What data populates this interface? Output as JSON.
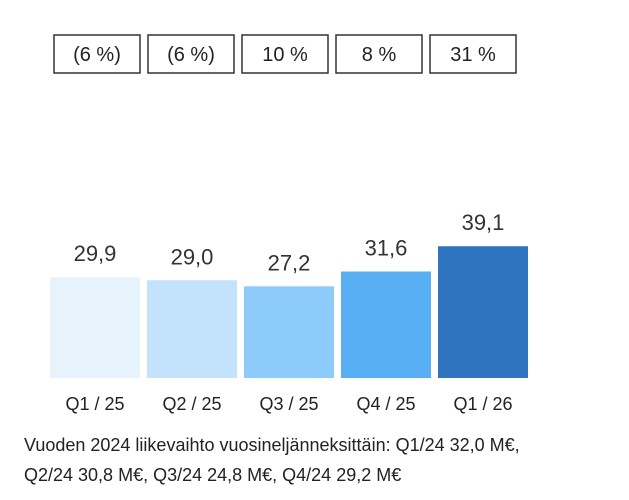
{
  "chart_data": {
    "type": "bar",
    "categories": [
      "Q1 / 25",
      "Q2 / 25",
      "Q3 / 25",
      "Q4 / 25",
      "Q1 / 26"
    ],
    "values": [
      29.9,
      29.0,
      27.2,
      31.6,
      39.1
    ],
    "value_labels": [
      "29,9",
      "29,0",
      "27,2",
      "31,6",
      "39,1"
    ],
    "change_labels": [
      "(6 %)",
      "(6 %)",
      "10 %",
      "8 %",
      "31 %"
    ],
    "colors": [
      "#e6f3fd",
      "#c3e2fc",
      "#8dcbfa",
      "#58aff4",
      "#2f74bf"
    ],
    "title": "",
    "xlabel": "",
    "ylabel": "",
    "ylim": [
      0,
      55
    ],
    "grid": false,
    "legend": "none"
  },
  "footnote": {
    "line1": "Vuoden 2024 liikevaihto vuosineljänneksittäin: Q1/24 32,0 M€,",
    "line2": "Q2/24 30,8 M€, Q3/24 24,8 M€, Q4/24 29,2 M€"
  }
}
